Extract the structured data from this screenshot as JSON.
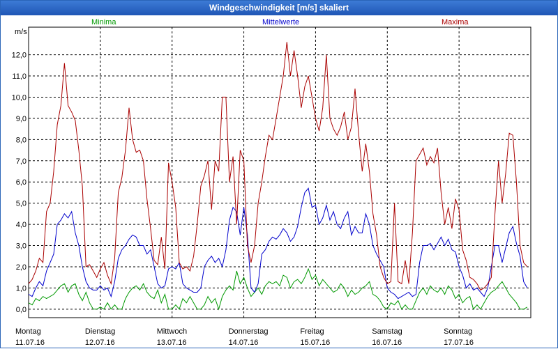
{
  "window": {
    "title": "Windgeschwindigkeit [m/s] skaliert"
  },
  "chart_data": {
    "type": "line",
    "title": "Windgeschwindigkeit [m/s] skaliert",
    "ylabel": "m/s",
    "ylim": [
      -0.4,
      13.3
    ],
    "xlim": [
      0,
      7
    ],
    "grid": true,
    "yticks": [
      "0,0",
      "1,0",
      "2,0",
      "3,0",
      "4,0",
      "5,0",
      "6,0",
      "7,0",
      "8,0",
      "9,0",
      "10,0",
      "11,0",
      "12,0"
    ],
    "days": [
      {
        "weekday": "Montag",
        "date": "11.07.16"
      },
      {
        "weekday": "Dienstag",
        "date": "12.07.16"
      },
      {
        "weekday": "Mittwoch",
        "date": "13.07.16"
      },
      {
        "weekday": "Donnerstag",
        "date": "14.07.16"
      },
      {
        "weekday": "Freitag",
        "date": "15.07.16"
      },
      {
        "weekday": "Samstag",
        "date": "16.07.16"
      },
      {
        "weekday": "Sonntag",
        "date": "17.07.16"
      }
    ],
    "series": [
      {
        "name": "Minima",
        "color": "#009900",
        "x": [
          0.0,
          0.05,
          0.1,
          0.15,
          0.2,
          0.25,
          0.3,
          0.35,
          0.4,
          0.45,
          0.5,
          0.55,
          0.6,
          0.65,
          0.7,
          0.75,
          0.8,
          0.85,
          0.9,
          0.95,
          1.0,
          1.05,
          1.1,
          1.15,
          1.2,
          1.25,
          1.3,
          1.35,
          1.4,
          1.45,
          1.5,
          1.55,
          1.6,
          1.65,
          1.7,
          1.75,
          1.8,
          1.85,
          1.9,
          1.95,
          2.0,
          2.05,
          2.1,
          2.15,
          2.2,
          2.25,
          2.3,
          2.35,
          2.4,
          2.45,
          2.5,
          2.55,
          2.6,
          2.65,
          2.7,
          2.75,
          2.8,
          2.85,
          2.9,
          2.95,
          3.0,
          3.05,
          3.1,
          3.15,
          3.2,
          3.25,
          3.3,
          3.35,
          3.4,
          3.45,
          3.5,
          3.55,
          3.6,
          3.65,
          3.7,
          3.75,
          3.8,
          3.85,
          3.9,
          3.95,
          4.0,
          4.05,
          4.1,
          4.15,
          4.2,
          4.25,
          4.3,
          4.35,
          4.4,
          4.45,
          4.5,
          4.55,
          4.6,
          4.65,
          4.7,
          4.75,
          4.8,
          4.85,
          4.9,
          4.95,
          5.0,
          5.05,
          5.1,
          5.15,
          5.2,
          5.25,
          5.3,
          5.35,
          5.4,
          5.45,
          5.5,
          5.55,
          5.6,
          5.65,
          5.7,
          5.75,
          5.8,
          5.85,
          5.9,
          5.95,
          6.0,
          6.05,
          6.1,
          6.15,
          6.2,
          6.25,
          6.3,
          6.35,
          6.4,
          6.45,
          6.5,
          6.55,
          6.6,
          6.65,
          6.7,
          6.75,
          6.8,
          6.85,
          6.9,
          6.95
        ],
        "values": [
          0.3,
          0.2,
          0.5,
          0.4,
          0.6,
          0.5,
          0.6,
          0.7,
          0.9,
          1.1,
          1.2,
          0.8,
          1.1,
          1.2,
          0.7,
          0.4,
          0.8,
          0.3,
          0.0,
          0.0,
          0.1,
          0.0,
          0.3,
          0.0,
          0.2,
          0.0,
          0.0,
          0.5,
          0.8,
          1.0,
          1.1,
          0.9,
          1.2,
          0.8,
          0.6,
          0.5,
          0.9,
          0.3,
          0.7,
          0.0,
          0.0,
          0.2,
          0.0,
          0.5,
          0.3,
          0.6,
          0.3,
          0.0,
          0.0,
          0.2,
          0.6,
          0.3,
          0.5,
          0.0,
          0.6,
          0.9,
          1.1,
          0.9,
          1.8,
          1.2,
          1.5,
          1.0,
          0.6,
          0.8,
          1.0,
          0.7,
          1.1,
          1.3,
          1.2,
          1.3,
          1.1,
          1.6,
          1.5,
          1.0,
          1.3,
          1.4,
          1.2,
          1.5,
          1.9,
          1.4,
          1.6,
          1.1,
          1.4,
          1.2,
          1.0,
          0.8,
          0.9,
          1.2,
          1.0,
          0.6,
          0.9,
          0.7,
          0.8,
          1.0,
          1.1,
          1.3,
          0.7,
          0.6,
          0.4,
          0.1,
          0.0,
          0.3,
          0.2,
          0.4,
          0.0,
          0.2,
          0.0,
          0.0,
          0.4,
          0.8,
          1.0,
          0.7,
          1.1,
          0.9,
          0.8,
          1.0,
          0.7,
          1.1,
          0.9,
          0.5,
          0.7,
          0.3,
          0.5,
          0.6,
          0.0,
          0.2,
          0.0,
          0.3,
          0.6,
          0.8,
          0.9,
          1.1,
          1.3,
          1.0,
          0.7,
          0.5,
          0.3,
          0.0,
          0.0,
          0.1
        ]
      },
      {
        "name": "Mittelwerte",
        "color": "#0000cc",
        "x": [
          0.0,
          0.05,
          0.1,
          0.15,
          0.2,
          0.25,
          0.3,
          0.35,
          0.4,
          0.45,
          0.5,
          0.55,
          0.6,
          0.65,
          0.7,
          0.75,
          0.8,
          0.85,
          0.9,
          0.95,
          1.0,
          1.05,
          1.1,
          1.15,
          1.2,
          1.25,
          1.3,
          1.35,
          1.4,
          1.45,
          1.5,
          1.55,
          1.6,
          1.65,
          1.7,
          1.75,
          1.8,
          1.85,
          1.9,
          1.95,
          2.0,
          2.05,
          2.1,
          2.15,
          2.2,
          2.25,
          2.3,
          2.35,
          2.4,
          2.45,
          2.5,
          2.55,
          2.6,
          2.65,
          2.7,
          2.75,
          2.8,
          2.85,
          2.9,
          2.95,
          3.0,
          3.05,
          3.1,
          3.15,
          3.2,
          3.25,
          3.3,
          3.35,
          3.4,
          3.45,
          3.5,
          3.55,
          3.6,
          3.65,
          3.7,
          3.75,
          3.8,
          3.85,
          3.9,
          3.95,
          4.0,
          4.05,
          4.1,
          4.15,
          4.2,
          4.25,
          4.3,
          4.35,
          4.4,
          4.45,
          4.5,
          4.55,
          4.6,
          4.65,
          4.7,
          4.75,
          4.8,
          4.85,
          4.9,
          4.95,
          5.0,
          5.05,
          5.1,
          5.15,
          5.2,
          5.25,
          5.3,
          5.35,
          5.4,
          5.45,
          5.5,
          5.55,
          5.6,
          5.65,
          5.7,
          5.75,
          5.8,
          5.85,
          5.9,
          5.95,
          6.0,
          6.05,
          6.1,
          6.15,
          6.2,
          6.25,
          6.3,
          6.35,
          6.4,
          6.45,
          6.5,
          6.55,
          6.6,
          6.65,
          6.7,
          6.75,
          6.8,
          6.85,
          6.9,
          6.95
        ],
        "values": [
          0.7,
          0.6,
          1.0,
          1.3,
          1.1,
          1.8,
          2.2,
          2.6,
          4.0,
          4.2,
          4.5,
          4.3,
          4.6,
          3.6,
          3.0,
          2.0,
          1.3,
          1.0,
          0.9,
          0.9,
          1.1,
          0.9,
          1.0,
          0.6,
          1.3,
          2.4,
          2.8,
          3.0,
          3.3,
          3.5,
          3.4,
          3.0,
          3.0,
          2.6,
          2.8,
          2.0,
          1.2,
          1.0,
          1.1,
          1.9,
          2.0,
          1.9,
          2.2,
          1.2,
          1.0,
          0.9,
          0.8,
          0.8,
          1.0,
          2.0,
          2.3,
          2.5,
          2.2,
          2.4,
          2.0,
          2.8,
          4.2,
          4.8,
          4.6,
          3.5,
          4.8,
          3.5,
          1.0,
          0.8,
          1.2,
          2.6,
          2.8,
          3.2,
          3.4,
          3.3,
          3.5,
          3.8,
          3.6,
          3.2,
          3.4,
          3.9,
          4.8,
          5.5,
          5.7,
          4.8,
          4.9,
          4.0,
          4.3,
          4.9,
          4.2,
          4.6,
          4.0,
          3.8,
          4.3,
          4.6,
          3.5,
          3.9,
          3.6,
          3.6,
          4.5,
          4.0,
          3.0,
          2.6,
          2.3,
          2.0,
          1.0,
          0.8,
          0.7,
          0.5,
          0.6,
          0.7,
          0.8,
          0.6,
          0.7,
          2.2,
          3.0,
          3.0,
          3.1,
          2.8,
          3.1,
          3.4,
          3.0,
          3.3,
          2.8,
          2.7,
          2.0,
          1.6,
          1.0,
          1.2,
          0.9,
          1.0,
          0.8,
          0.6,
          1.0,
          2.0,
          3.0,
          3.0,
          2.2,
          2.9,
          3.6,
          3.9,
          3.1,
          2.5,
          1.3,
          1.0
        ]
      },
      {
        "name": "Maxima",
        "color": "#aa0000",
        "x": [
          0.0,
          0.05,
          0.1,
          0.15,
          0.2,
          0.25,
          0.3,
          0.35,
          0.4,
          0.45,
          0.5,
          0.55,
          0.6,
          0.65,
          0.7,
          0.75,
          0.8,
          0.85,
          0.9,
          0.95,
          1.0,
          1.05,
          1.1,
          1.15,
          1.2,
          1.25,
          1.3,
          1.35,
          1.4,
          1.45,
          1.5,
          1.55,
          1.6,
          1.65,
          1.7,
          1.75,
          1.8,
          1.85,
          1.9,
          1.95,
          2.0,
          2.05,
          2.1,
          2.15,
          2.2,
          2.25,
          2.3,
          2.35,
          2.4,
          2.45,
          2.5,
          2.55,
          2.6,
          2.65,
          2.7,
          2.75,
          2.8,
          2.85,
          2.9,
          2.95,
          3.0,
          3.05,
          3.1,
          3.15,
          3.2,
          3.25,
          3.3,
          3.35,
          3.4,
          3.45,
          3.5,
          3.55,
          3.6,
          3.65,
          3.7,
          3.75,
          3.8,
          3.85,
          3.9,
          3.95,
          4.0,
          4.05,
          4.1,
          4.15,
          4.2,
          4.25,
          4.3,
          4.35,
          4.4,
          4.45,
          4.5,
          4.55,
          4.6,
          4.65,
          4.7,
          4.75,
          4.8,
          4.85,
          4.9,
          4.95,
          5.0,
          5.05,
          5.1,
          5.15,
          5.2,
          5.25,
          5.3,
          5.35,
          5.4,
          5.45,
          5.5,
          5.55,
          5.6,
          5.65,
          5.7,
          5.75,
          5.8,
          5.85,
          5.9,
          5.95,
          6.0,
          6.05,
          6.1,
          6.15,
          6.2,
          6.25,
          6.3,
          6.35,
          6.4,
          6.45,
          6.5,
          6.55,
          6.6,
          6.65,
          6.7,
          6.75,
          6.8,
          6.85,
          6.9,
          6.95
        ],
        "values": [
          1.2,
          1.4,
          1.8,
          2.4,
          2.2,
          4.6,
          5.0,
          6.5,
          8.7,
          9.6,
          11.6,
          9.6,
          9.3,
          8.9,
          7.5,
          5.8,
          2.0,
          2.1,
          1.8,
          1.5,
          1.9,
          2.2,
          1.6,
          1.2,
          2.4,
          5.5,
          6.2,
          7.5,
          9.5,
          8.0,
          7.4,
          7.5,
          7.0,
          5.2,
          3.8,
          2.3,
          2.1,
          3.4,
          1.9,
          6.9,
          6.0,
          4.8,
          2.2,
          1.9,
          2.0,
          1.8,
          2.5,
          4.0,
          5.8,
          6.3,
          7.0,
          4.7,
          7.0,
          6.5,
          10.0,
          10.0,
          6.0,
          7.2,
          4.0,
          7.5,
          7.0,
          3.0,
          2.2,
          3.0,
          5.0,
          6.0,
          7.2,
          8.2,
          8.0,
          9.0,
          10.0,
          11.0,
          12.6,
          11.0,
          12.2,
          11.0,
          9.5,
          10.5,
          11.0,
          10.0,
          9.0,
          8.4,
          9.5,
          12.0,
          9.0,
          8.5,
          8.2,
          8.6,
          9.3,
          8.0,
          8.6,
          10.4,
          8.3,
          6.5,
          7.8,
          6.5,
          4.5,
          3.5,
          2.0,
          1.5,
          1.2,
          1.3,
          5.0,
          1.3,
          1.2,
          2.3,
          1.2,
          3.6,
          7.0,
          7.3,
          7.6,
          6.8,
          7.2,
          6.9,
          7.6,
          5.5,
          4.0,
          4.8,
          3.8,
          5.2,
          4.7,
          2.8,
          2.3,
          1.5,
          1.4,
          1.2,
          0.9,
          1.0,
          1.2,
          1.5,
          4.5,
          7.0,
          5.0,
          6.4,
          8.3,
          8.2,
          6.0,
          3.0,
          2.2,
          2.0
        ]
      }
    ]
  }
}
